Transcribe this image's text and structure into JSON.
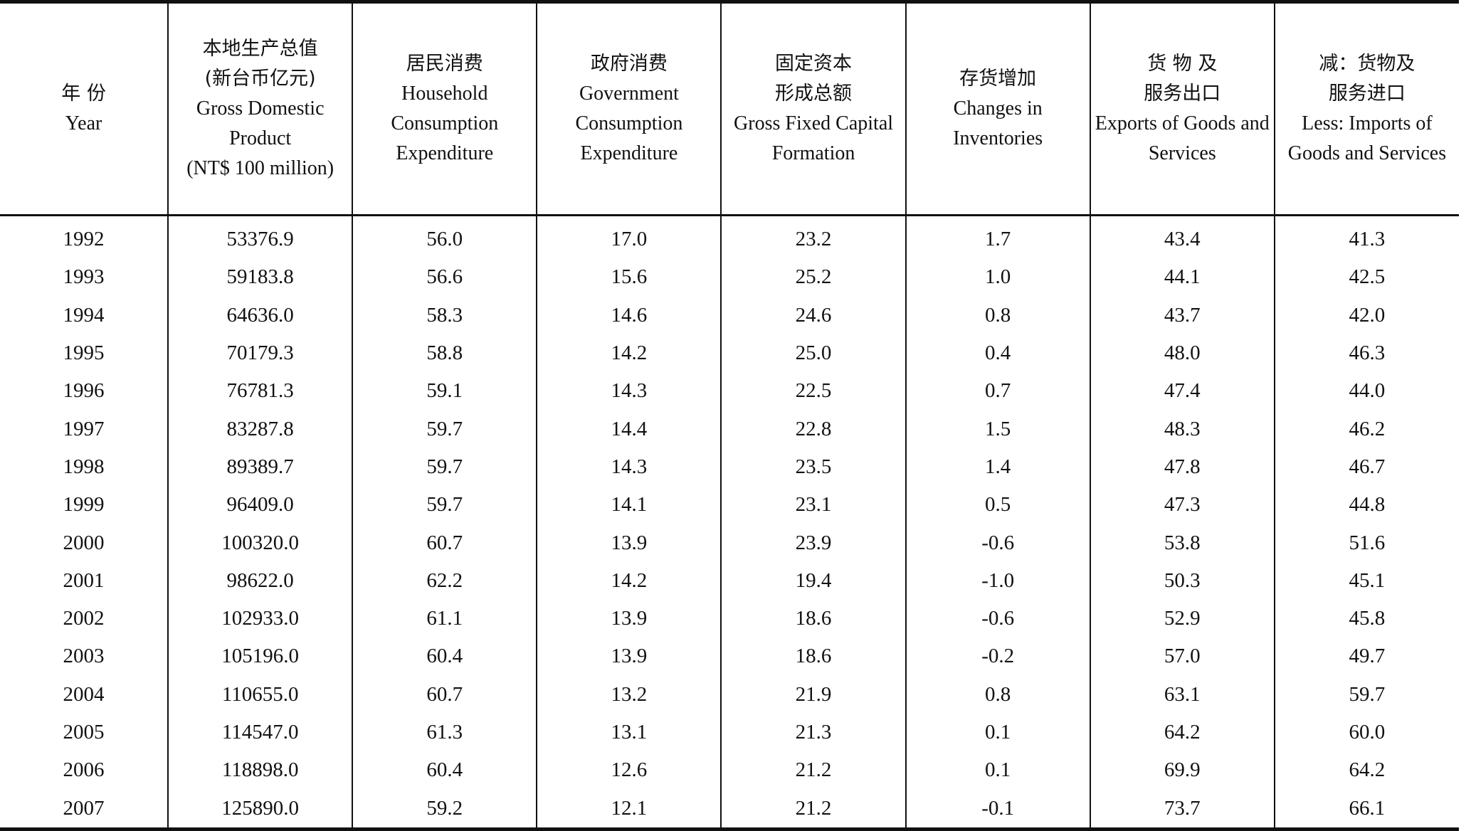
{
  "columns": [
    {
      "zh": "年 份",
      "en": "Year"
    },
    {
      "zh": "本地生产总值",
      "zh2": "(新台币亿元)",
      "en": "Gross Domestic Product",
      "en2": "(NT$ 100 million)"
    },
    {
      "zh": "居民消费",
      "en": "Household Consumption Expenditure"
    },
    {
      "zh": "政府消费",
      "en": "Government Consumption Expenditure"
    },
    {
      "zh": "固定资本",
      "zh2": "形成总额",
      "en": "Gross Fixed Capital Formation"
    },
    {
      "zh": "存货增加",
      "en": "Changes in Inventories"
    },
    {
      "zh": "货 物 及",
      "zh2": "服务出口",
      "en": "Exports of Goods and Services"
    },
    {
      "zh": "减：货物及",
      "zh2": "服务进口",
      "en": "Less: Imports of Goods and Services"
    }
  ],
  "rows": [
    [
      "1992",
      "53376.9",
      "56.0",
      "17.0",
      "23.2",
      "1.7",
      "43.4",
      "41.3"
    ],
    [
      "1993",
      "59183.8",
      "56.6",
      "15.6",
      "25.2",
      "1.0",
      "44.1",
      "42.5"
    ],
    [
      "1994",
      "64636.0",
      "58.3",
      "14.6",
      "24.6",
      "0.8",
      "43.7",
      "42.0"
    ],
    [
      "1995",
      "70179.3",
      "58.8",
      "14.2",
      "25.0",
      "0.4",
      "48.0",
      "46.3"
    ],
    [
      "1996",
      "76781.3",
      "59.1",
      "14.3",
      "22.5",
      "0.7",
      "47.4",
      "44.0"
    ],
    [
      "1997",
      "83287.8",
      "59.7",
      "14.4",
      "22.8",
      "1.5",
      "48.3",
      "46.2"
    ],
    [
      "1998",
      "89389.7",
      "59.7",
      "14.3",
      "23.5",
      "1.4",
      "47.8",
      "46.7"
    ],
    [
      "1999",
      "96409.0",
      "59.7",
      "14.1",
      "23.1",
      "0.5",
      "47.3",
      "44.8"
    ],
    [
      "2000",
      "100320.0",
      "60.7",
      "13.9",
      "23.9",
      "-0.6",
      "53.8",
      "51.6"
    ],
    [
      "2001",
      "98622.0",
      "62.2",
      "14.2",
      "19.4",
      "-1.0",
      "50.3",
      "45.1"
    ],
    [
      "2002",
      "102933.0",
      "61.1",
      "13.9",
      "18.6",
      "-0.6",
      "52.9",
      "45.8"
    ],
    [
      "2003",
      "105196.0",
      "60.4",
      "13.9",
      "18.6",
      "-0.2",
      "57.0",
      "49.7"
    ],
    [
      "2004",
      "110655.0",
      "60.7",
      "13.2",
      "21.9",
      "0.8",
      "63.1",
      "59.7"
    ],
    [
      "2005",
      "114547.0",
      "61.3",
      "13.1",
      "21.3",
      "0.1",
      "64.2",
      "60.0"
    ],
    [
      "2006",
      "118898.0",
      "60.4",
      "12.6",
      "21.2",
      "0.1",
      "69.9",
      "64.2"
    ],
    [
      "2007",
      "125890.0",
      "59.2",
      "12.1",
      "21.2",
      "-0.1",
      "73.7",
      "66.1"
    ]
  ]
}
